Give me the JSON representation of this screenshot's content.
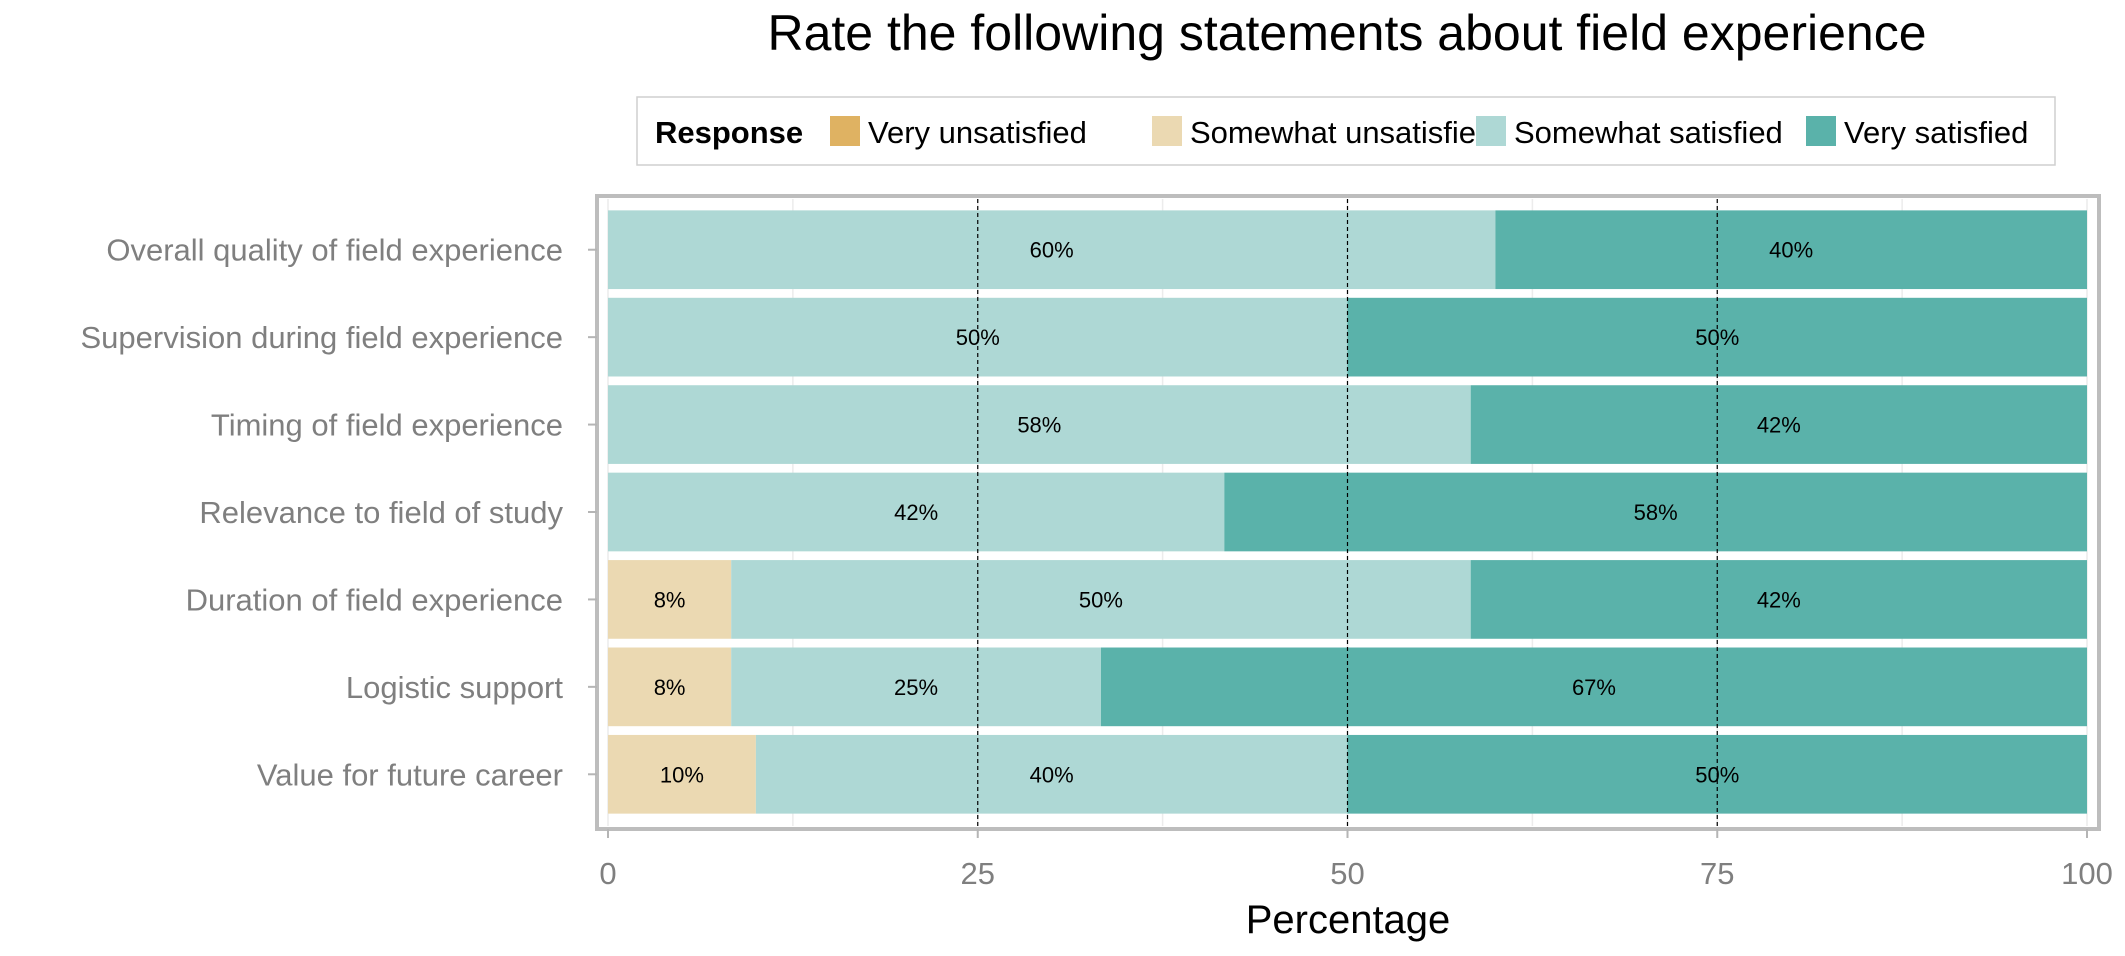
{
  "chart_data": {
    "type": "bar",
    "orientation": "horizontal",
    "stacked": true,
    "title": "Rate the following statements about field experience",
    "xlabel": "Percentage",
    "ylabel": "",
    "xlim": [
      0,
      100
    ],
    "xticks": [
      0,
      25,
      50,
      75,
      100
    ],
    "grid": true,
    "reference_lines": [
      25,
      50,
      75
    ],
    "legend": {
      "title": "Response",
      "position": "top",
      "entries": [
        "Very unsatisfied",
        "Somewhat unsatisfied",
        "Somewhat satisfied",
        "Very satisfied"
      ]
    },
    "categories": [
      "Overall quality of field experience",
      "Supervision during field experience",
      "Timing of field experience",
      "Relevance to field of study",
      "Duration of field experience",
      "Logistic support",
      "Value for future career"
    ],
    "series": [
      {
        "name": "Very unsatisfied",
        "color": "#dfb262",
        "values": [
          0,
          0,
          0,
          0,
          0,
          0,
          0
        ]
      },
      {
        "name": "Somewhat unsatisfied",
        "color": "#ebd9b2",
        "values": [
          0,
          0,
          0,
          0,
          8.33,
          8.33,
          10
        ]
      },
      {
        "name": "Somewhat satisfied",
        "color": "#aed8d5",
        "values": [
          60,
          50,
          58.33,
          41.67,
          50,
          25,
          40
        ]
      },
      {
        "name": "Very satisfied",
        "color": "#5ab2aa",
        "values": [
          40,
          50,
          41.67,
          58.33,
          41.67,
          66.67,
          50
        ]
      }
    ],
    "data_labels": [
      [
        "",
        "",
        "60%",
        "40%"
      ],
      [
        "",
        "",
        "50%",
        "50%"
      ],
      [
        "",
        "",
        "58%",
        "42%"
      ],
      [
        "",
        "",
        "42%",
        "58%"
      ],
      [
        "",
        "8%",
        "50%",
        "42%"
      ],
      [
        "",
        "8%",
        "25%",
        "67%"
      ],
      [
        "",
        "10%",
        "40%",
        "50%"
      ]
    ]
  }
}
